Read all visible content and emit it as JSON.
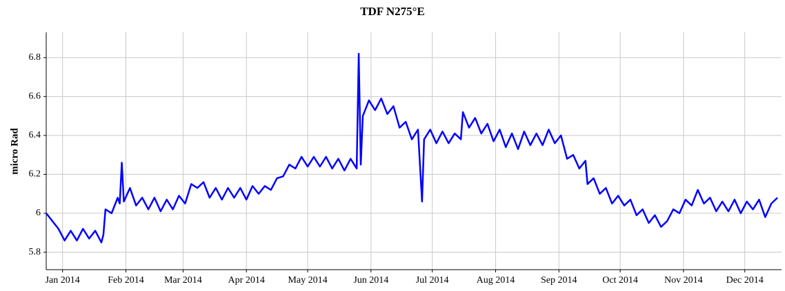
{
  "chart_data": {
    "type": "line",
    "title": "TDF N275°E",
    "y_label": "micro Rad",
    "color": "#0000ff",
    "grid": true,
    "xlim": [
      -8,
      352
    ],
    "ylim": [
      5.71,
      6.93
    ],
    "xticks": [
      {
        "value": 0,
        "label": "Jan 2014"
      },
      {
        "value": 31,
        "label": "Feb 2014"
      },
      {
        "value": 59,
        "label": "Mar 2014"
      },
      {
        "value": 90,
        "label": "Apr 2014"
      },
      {
        "value": 120,
        "label": "May 2014"
      },
      {
        "value": 151,
        "label": "Jun 2014"
      },
      {
        "value": 181,
        "label": "Jul 2014"
      },
      {
        "value": 212,
        "label": "Aug 2014"
      },
      {
        "value": 243,
        "label": "Sep 2014"
      },
      {
        "value": 273,
        "label": "Oct 2014"
      },
      {
        "value": 304,
        "label": "Nov 2014"
      },
      {
        "value": 334,
        "label": "Dec 2014"
      }
    ],
    "yticks": [
      5.8,
      6,
      6.2,
      6.4,
      6.6,
      6.8
    ],
    "x": [
      -8,
      -5,
      -2,
      1,
      4,
      7,
      10,
      13,
      16,
      19,
      20,
      21,
      24,
      27,
      28,
      29,
      30,
      33,
      36,
      39,
      42,
      45,
      48,
      51,
      54,
      57,
      60,
      63,
      66,
      69,
      72,
      75,
      78,
      81,
      84,
      87,
      90,
      93,
      96,
      99,
      102,
      105,
      108,
      111,
      114,
      117,
      120,
      123,
      126,
      129,
      132,
      135,
      138,
      141,
      144,
      145,
      146,
      147,
      150,
      153,
      156,
      159,
      162,
      165,
      168,
      171,
      174,
      176,
      177,
      180,
      183,
      186,
      189,
      192,
      195,
      196,
      199,
      202,
      205,
      208,
      211,
      214,
      217,
      220,
      223,
      226,
      229,
      232,
      235,
      238,
      241,
      244,
      247,
      250,
      253,
      256,
      257,
      260,
      263,
      266,
      269,
      272,
      275,
      278,
      281,
      284,
      287,
      290,
      293,
      296,
      299,
      302,
      305,
      308,
      311,
      314,
      317,
      320,
      323,
      326,
      329,
      332,
      335,
      338,
      341,
      344,
      347,
      350
    ],
    "values": [
      6.0,
      5.96,
      5.92,
      5.86,
      5.91,
      5.86,
      5.92,
      5.87,
      5.91,
      5.85,
      5.89,
      6.02,
      6.0,
      6.08,
      6.05,
      6.26,
      6.06,
      6.13,
      6.04,
      6.08,
      6.02,
      6.08,
      6.01,
      6.07,
      6.02,
      6.09,
      6.05,
      6.15,
      6.13,
      6.16,
      6.08,
      6.13,
      6.07,
      6.13,
      6.08,
      6.13,
      6.07,
      6.14,
      6.1,
      6.14,
      6.12,
      6.18,
      6.19,
      6.25,
      6.23,
      6.29,
      6.24,
      6.29,
      6.24,
      6.29,
      6.23,
      6.28,
      6.22,
      6.28,
      6.23,
      6.82,
      6.25,
      6.5,
      6.58,
      6.53,
      6.59,
      6.51,
      6.55,
      6.44,
      6.47,
      6.38,
      6.43,
      6.06,
      6.38,
      6.43,
      6.36,
      6.42,
      6.36,
      6.41,
      6.38,
      6.52,
      6.44,
      6.49,
      6.41,
      6.46,
      6.37,
      6.43,
      6.34,
      6.41,
      6.33,
      6.42,
      6.35,
      6.41,
      6.35,
      6.43,
      6.36,
      6.4,
      6.28,
      6.3,
      6.23,
      6.27,
      6.15,
      6.18,
      6.1,
      6.13,
      6.05,
      6.09,
      6.04,
      6.07,
      5.99,
      6.02,
      5.95,
      5.99,
      5.93,
      5.96,
      6.02,
      6.0,
      6.07,
      6.04,
      6.12,
      6.05,
      6.08,
      6.01,
      6.06,
      6.01,
      6.07,
      6.0,
      6.06,
      6.02,
      6.07,
      5.98,
      6.05,
      6.08
    ]
  }
}
